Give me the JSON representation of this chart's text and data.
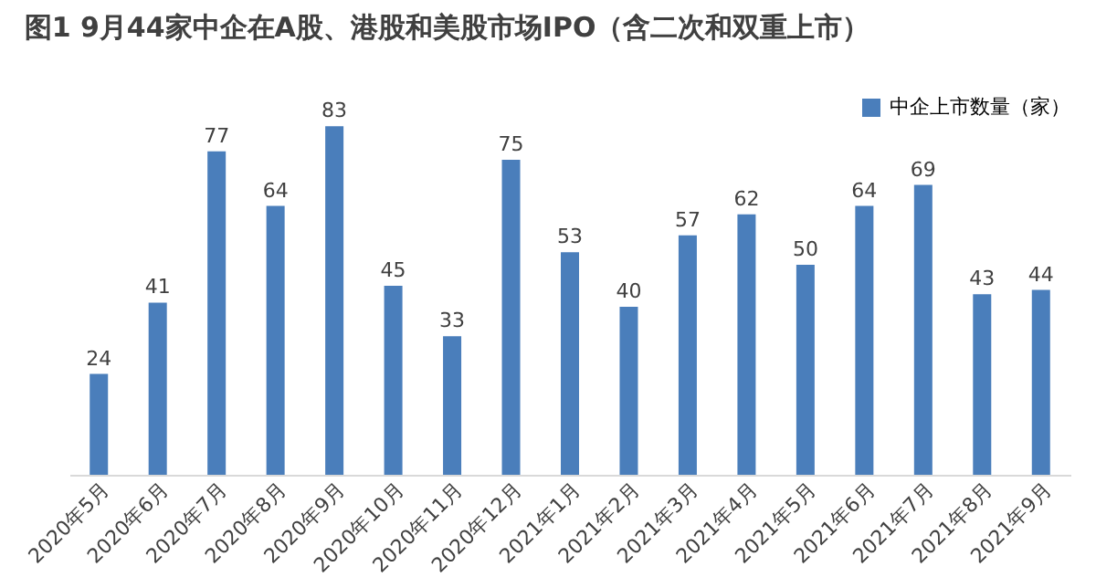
{
  "chart_data": {
    "type": "bar",
    "title": "图1 9月44家中企在A股、港股和美股市场IPO（含二次和双重上市）",
    "categories": [
      "2020年5月",
      "2020年6月",
      "2020年7月",
      "2020年8月",
      "2020年9月",
      "2020年10月",
      "2020年11月",
      "2020年12月",
      "2021年1月",
      "2021年2月",
      "2021年3月",
      "2021年4月",
      "2021年5月",
      "2021年6月",
      "2021年7月",
      "2021年8月",
      "2021年9月"
    ],
    "series": [
      {
        "name": "中企上市数量（家）",
        "color": "#4a7ebb",
        "values": [
          24,
          41,
          77,
          64,
          83,
          45,
          33,
          75,
          53,
          40,
          57,
          62,
          50,
          64,
          69,
          43,
          44
        ]
      }
    ],
    "data_labels": true,
    "legend": "top right",
    "grid": false
  }
}
